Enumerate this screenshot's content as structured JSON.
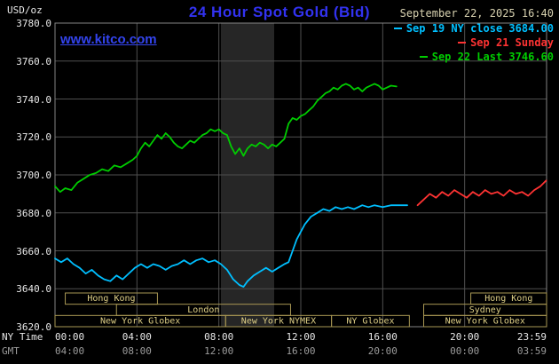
{
  "header": {
    "unit_label": "USD/oz",
    "title": "24 Hour Spot Gold (Bid)",
    "datetime": "September 22, 2025 16:40",
    "watermark": "www.kitco.com"
  },
  "legend": {
    "items": [
      {
        "label": "Sep 19 NY close 3684.00",
        "color": "#00BFFF"
      },
      {
        "label": "Sep 21 Sunday",
        "color": "#FF3333"
      },
      {
        "label": "Sep 22 Last 3746.60",
        "color": "#00CC00"
      }
    ]
  },
  "axes": {
    "y": {
      "ticks": [
        {
          "value": 3780,
          "label": "3780.0"
        },
        {
          "value": 3760,
          "label": "3760.0"
        },
        {
          "value": 3740,
          "label": "3740.0"
        },
        {
          "value": 3720,
          "label": "3720.0"
        },
        {
          "value": 3700,
          "label": "3700.0"
        },
        {
          "value": 3680,
          "label": "3680.0"
        },
        {
          "value": 3660,
          "label": "3660.0"
        },
        {
          "value": 3640,
          "label": "3640.0"
        },
        {
          "value": 3620,
          "label": "3620.0"
        }
      ]
    },
    "x_ny": {
      "axis_label": "NY Time",
      "ticks": [
        {
          "hour": 0,
          "label": "00:00"
        },
        {
          "hour": 4,
          "label": "04:00"
        },
        {
          "hour": 8,
          "label": "08:00"
        },
        {
          "hour": 12,
          "label": "12:00"
        },
        {
          "hour": 16,
          "label": "16:00"
        },
        {
          "hour": 20,
          "label": "20:00"
        },
        {
          "hour": 24,
          "label": "23:59"
        }
      ]
    },
    "x_gmt": {
      "axis_label": "GMT",
      "ticks": [
        {
          "hour": 0,
          "label": "04:00"
        },
        {
          "hour": 4,
          "label": "08:00"
        },
        {
          "hour": 8,
          "label": "12:00"
        },
        {
          "hour": 12,
          "label": "16:00"
        },
        {
          "hour": 16,
          "label": "20:00"
        },
        {
          "hour": 20,
          "label": "00:00"
        },
        {
          "hour": 24,
          "label": "03:59"
        }
      ]
    }
  },
  "chart_data": {
    "type": "line",
    "title": "24 Hour Spot Gold (Bid)",
    "ylabel": "USD/oz",
    "ylim": [
      3620,
      3780
    ],
    "xlim_hours": [
      0,
      24
    ],
    "grid": true,
    "y_grid_step": 20,
    "x_grid_step_hours": 4,
    "legend_position": "top-right",
    "highlight_band_hours": [
      8.1,
      10.7
    ],
    "series": [
      {
        "name": "Sep 19 NY close 3684.00",
        "color": "#00BFFF",
        "points": [
          [
            0,
            3656
          ],
          [
            0.3,
            3654
          ],
          [
            0.6,
            3656
          ],
          [
            0.9,
            3653
          ],
          [
            1.2,
            3651
          ],
          [
            1.5,
            3648
          ],
          [
            1.8,
            3650
          ],
          [
            2.1,
            3647
          ],
          [
            2.4,
            3645
          ],
          [
            2.7,
            3644
          ],
          [
            3,
            3647
          ],
          [
            3.3,
            3645
          ],
          [
            3.6,
            3648
          ],
          [
            3.9,
            3651
          ],
          [
            4.2,
            3653
          ],
          [
            4.5,
            3651
          ],
          [
            4.8,
            3653
          ],
          [
            5.1,
            3652
          ],
          [
            5.4,
            3650
          ],
          [
            5.7,
            3652
          ],
          [
            6,
            3653
          ],
          [
            6.3,
            3655
          ],
          [
            6.6,
            3653
          ],
          [
            6.9,
            3655
          ],
          [
            7.2,
            3656
          ],
          [
            7.5,
            3654
          ],
          [
            7.8,
            3655
          ],
          [
            8.1,
            3653
          ],
          [
            8.4,
            3650
          ],
          [
            8.7,
            3645
          ],
          [
            9,
            3642
          ],
          [
            9.2,
            3641
          ],
          [
            9.4,
            3644
          ],
          [
            9.7,
            3647
          ],
          [
            10,
            3649
          ],
          [
            10.3,
            3651
          ],
          [
            10.6,
            3649
          ],
          [
            10.9,
            3651
          ],
          [
            11.2,
            3653
          ],
          [
            11.4,
            3654
          ],
          [
            11.6,
            3660
          ],
          [
            11.8,
            3666
          ],
          [
            12,
            3670
          ],
          [
            12.2,
            3674
          ],
          [
            12.5,
            3678
          ],
          [
            12.8,
            3680
          ],
          [
            13.1,
            3682
          ],
          [
            13.4,
            3681
          ],
          [
            13.7,
            3683
          ],
          [
            14,
            3682
          ],
          [
            14.3,
            3683
          ],
          [
            14.6,
            3682
          ],
          [
            15,
            3684
          ],
          [
            15.3,
            3683
          ],
          [
            15.6,
            3684
          ],
          [
            16,
            3683
          ],
          [
            16.4,
            3684
          ],
          [
            16.8,
            3684
          ],
          [
            17.2,
            3684
          ]
        ]
      },
      {
        "name": "Sep 21 Sunday",
        "color": "#FF3333",
        "points": [
          [
            17.7,
            3684
          ],
          [
            18,
            3687
          ],
          [
            18.3,
            3690
          ],
          [
            18.6,
            3688
          ],
          [
            18.9,
            3691
          ],
          [
            19.2,
            3689
          ],
          [
            19.5,
            3692
          ],
          [
            19.8,
            3690
          ],
          [
            20.1,
            3688
          ],
          [
            20.4,
            3691
          ],
          [
            20.7,
            3689
          ],
          [
            21,
            3692
          ],
          [
            21.3,
            3690
          ],
          [
            21.6,
            3691
          ],
          [
            21.9,
            3689
          ],
          [
            22.2,
            3692
          ],
          [
            22.5,
            3690
          ],
          [
            22.8,
            3691
          ],
          [
            23.1,
            3689
          ],
          [
            23.4,
            3692
          ],
          [
            23.7,
            3694
          ],
          [
            23.98,
            3697
          ]
        ]
      },
      {
        "name": "Sep 22 Last 3746.60",
        "color": "#00CC00",
        "points": [
          [
            0,
            3694
          ],
          [
            0.25,
            3691
          ],
          [
            0.5,
            3693
          ],
          [
            0.8,
            3692
          ],
          [
            1.1,
            3696
          ],
          [
            1.4,
            3698
          ],
          [
            1.7,
            3700
          ],
          [
            2,
            3701
          ],
          [
            2.3,
            3703
          ],
          [
            2.6,
            3702
          ],
          [
            2.9,
            3705
          ],
          [
            3.2,
            3704
          ],
          [
            3.5,
            3706
          ],
          [
            3.8,
            3708
          ],
          [
            4,
            3710
          ],
          [
            4.2,
            3714
          ],
          [
            4.4,
            3717
          ],
          [
            4.6,
            3715
          ],
          [
            4.8,
            3718
          ],
          [
            5,
            3721
          ],
          [
            5.2,
            3719
          ],
          [
            5.4,
            3722
          ],
          [
            5.6,
            3720
          ],
          [
            5.8,
            3717
          ],
          [
            6,
            3715
          ],
          [
            6.2,
            3714
          ],
          [
            6.4,
            3716
          ],
          [
            6.6,
            3718
          ],
          [
            6.8,
            3717
          ],
          [
            7,
            3719
          ],
          [
            7.2,
            3721
          ],
          [
            7.4,
            3722
          ],
          [
            7.6,
            3724
          ],
          [
            7.8,
            3723
          ],
          [
            8,
            3724
          ],
          [
            8.2,
            3722
          ],
          [
            8.4,
            3721
          ],
          [
            8.6,
            3715
          ],
          [
            8.8,
            3711
          ],
          [
            9,
            3714
          ],
          [
            9.2,
            3710
          ],
          [
            9.4,
            3714
          ],
          [
            9.6,
            3716
          ],
          [
            9.8,
            3715
          ],
          [
            10,
            3717
          ],
          [
            10.2,
            3716
          ],
          [
            10.4,
            3714
          ],
          [
            10.6,
            3716
          ],
          [
            10.8,
            3715
          ],
          [
            11,
            3717
          ],
          [
            11.2,
            3719
          ],
          [
            11.4,
            3727
          ],
          [
            11.6,
            3730
          ],
          [
            11.8,
            3729
          ],
          [
            12,
            3731
          ],
          [
            12.2,
            3732
          ],
          [
            12.4,
            3734
          ],
          [
            12.6,
            3736
          ],
          [
            12.8,
            3739
          ],
          [
            13,
            3741
          ],
          [
            13.2,
            3743
          ],
          [
            13.4,
            3744
          ],
          [
            13.6,
            3746
          ],
          [
            13.8,
            3745
          ],
          [
            14,
            3747
          ],
          [
            14.2,
            3748
          ],
          [
            14.4,
            3747
          ],
          [
            14.6,
            3745
          ],
          [
            14.8,
            3746
          ],
          [
            15,
            3744
          ],
          [
            15.2,
            3746
          ],
          [
            15.4,
            3747
          ],
          [
            15.6,
            3748
          ],
          [
            15.8,
            3747
          ],
          [
            16,
            3745
          ],
          [
            16.2,
            3746
          ],
          [
            16.4,
            3747
          ],
          [
            16.67,
            3746.6
          ]
        ]
      }
    ],
    "sessions": [
      {
        "row": 0,
        "label": "Hong Kong",
        "start": 0.5,
        "end": 5.0
      },
      {
        "row": 0,
        "label": "Hong Kong",
        "start": 20.3,
        "end": 24
      },
      {
        "row": 1,
        "label": "London",
        "start": 3.0,
        "end": 11.5
      },
      {
        "row": 1,
        "label": "Sydney",
        "start": 18.0,
        "end": 24
      },
      {
        "row": 2,
        "label": "New York Globex",
        "start": 0,
        "end": 8.33
      },
      {
        "row": 2,
        "label": "New York NYMEX",
        "start": 8.33,
        "end": 13.5
      },
      {
        "row": 2,
        "label": "NY Globex",
        "start": 13.5,
        "end": 17.3
      },
      {
        "row": 2,
        "label": "New York Globex",
        "start": 18.0,
        "end": 24
      }
    ]
  },
  "colors": {
    "background": "#000000",
    "grid": "#4F4F4F",
    "plot_border": "#858585",
    "band": "#262626",
    "title": "#3232F0",
    "watermark": "#3344EE",
    "datetime": "#D8D2B0",
    "axis_text": "#E8E8E8",
    "axis_text_dim": "#9C9C9C",
    "session_border": "#A89753",
    "session_text": "#DECF86"
  }
}
